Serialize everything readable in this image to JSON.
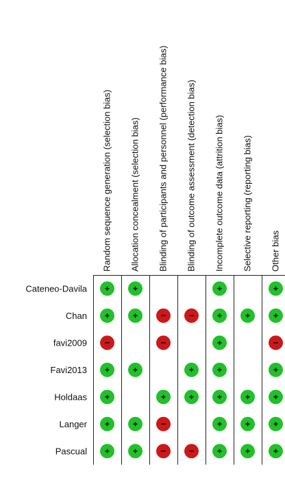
{
  "chart_data": {
    "type": "table",
    "domains": [
      "Random sequence generation (selection bias)",
      "Allocation concealment (selection bias)",
      "Blinding of participants and personnel (performance bias)",
      "Blinding of outcome assessment (detection bias)",
      "Incomplete outcome data (attrition bias)",
      "Selective reporting (reporting bias)",
      "Other bias"
    ],
    "studies": [
      {
        "name": "Cateneo-Davila",
        "judgements": [
          "+",
          "+",
          "",
          "",
          "+",
          "",
          "+"
        ]
      },
      {
        "name": "Chan",
        "judgements": [
          "+",
          "+",
          "-",
          "-",
          "+",
          "+",
          "+"
        ]
      },
      {
        "name": "favi2009",
        "judgements": [
          "-",
          "",
          "-",
          "",
          "+",
          "",
          "-"
        ]
      },
      {
        "name": "Favi2013",
        "judgements": [
          "+",
          "+",
          "",
          "+",
          "+",
          "",
          "+"
        ]
      },
      {
        "name": "Holdaas",
        "judgements": [
          "+",
          "",
          "+",
          "+",
          "+",
          "+",
          "+"
        ]
      },
      {
        "name": "Langer",
        "judgements": [
          "+",
          "+",
          "-",
          "",
          "+",
          "+",
          "+"
        ]
      },
      {
        "name": "Pascual",
        "judgements": [
          "+",
          "+",
          "-",
          "-",
          "+",
          "+",
          "+"
        ]
      }
    ],
    "legend": {
      "low_risk": {
        "symbol": "+",
        "color": "#22c02a"
      },
      "high_risk": {
        "symbol": "-",
        "color": "#cc1818"
      }
    }
  }
}
